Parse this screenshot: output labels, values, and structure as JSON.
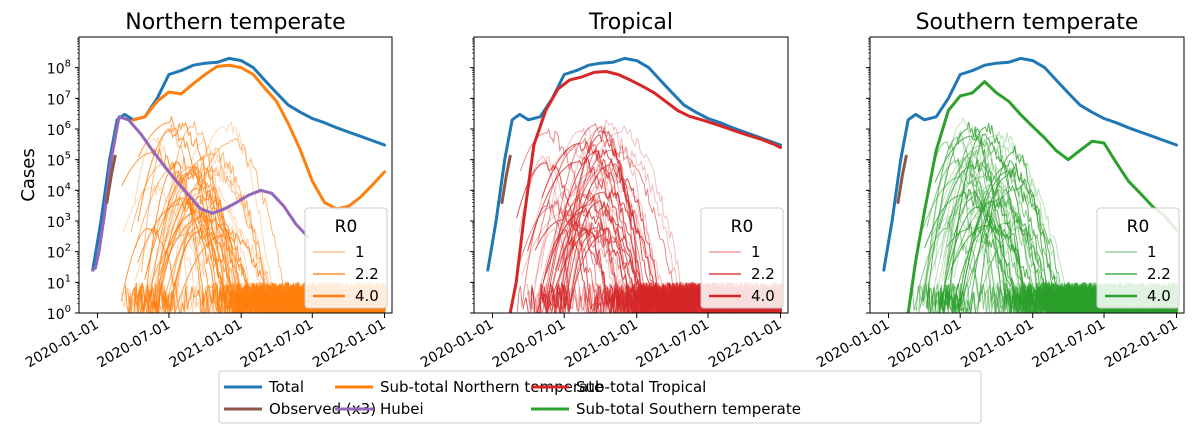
{
  "figure": {
    "legend": {
      "placement": "bottom-center",
      "columns": 3,
      "entries": [
        {
          "label": "Total",
          "color": "#1f77b4"
        },
        {
          "label": "Observed (x3)",
          "color": "#8c564b"
        },
        {
          "label": "Sub-total Northern temperate",
          "color": "#ff7f0e"
        },
        {
          "label": "Hubei",
          "color": "#9467bd"
        },
        {
          "label": "Sub-total Tropical",
          "color": "#d62728"
        },
        {
          "label": "Sub-total Southern temperate",
          "color": "#2ca02c"
        }
      ]
    }
  },
  "chart_data": [
    {
      "type": "line",
      "title": "Northern temperate",
      "xlabel": "",
      "ylabel": "Cases",
      "yscale": "log",
      "ylim": [
        1,
        1000000000
      ],
      "xlim": [
        "2019-11-15",
        "2022-01-20"
      ],
      "xticks": [
        "2020-01-01",
        "2020-07-01",
        "2021-01-01",
        "2021-07-01",
        "2022-01-01"
      ],
      "yticks": [
        "10^0",
        "10^1",
        "10^2",
        "10^3",
        "10^4",
        "10^5",
        "10^6",
        "10^7",
        "10^8"
      ],
      "legend": {
        "title": "R0",
        "placement": "lower-right",
        "entries": [
          {
            "label": "1",
            "color": "#ff7f0e",
            "opacity": 0.35
          },
          {
            "label": "2.2",
            "color": "#ff7f0e",
            "opacity": 0.65
          },
          {
            "label": "4.0",
            "color": "#ff7f0e",
            "opacity": 1.0
          }
        ]
      },
      "subtotal_color": "#ff7f0e",
      "series": [
        {
          "name": "Total",
          "color": "#1f77b4",
          "x": [
            "2019-12-20",
            "2020-01-10",
            "2020-02-01",
            "2020-02-20",
            "2020-03-10",
            "2020-04-01",
            "2020-05-01",
            "2020-06-01",
            "2020-07-01",
            "2020-08-01",
            "2020-09-01",
            "2020-10-01",
            "2020-11-01",
            "2020-12-01",
            "2021-01-01",
            "2021-02-01",
            "2021-03-01",
            "2021-04-01",
            "2021-05-01",
            "2021-06-01",
            "2021-07-01",
            "2021-08-01",
            "2021-09-01",
            "2021-10-01",
            "2021-11-01",
            "2021-12-01",
            "2022-01-01"
          ],
          "y": [
            25,
            1000,
            100000,
            2000000,
            3000000,
            2000000,
            2500000,
            10000000,
            60000000,
            80000000,
            120000000,
            140000000,
            150000000,
            200000000,
            170000000,
            100000000,
            40000000,
            15000000,
            6000000,
            3500000,
            2200000,
            1600000,
            1100000,
            800000,
            580000,
            420000,
            300000
          ]
        },
        {
          "name": "Sub-total Northern temperate",
          "color": "#ff7f0e",
          "x": [
            "2020-04-01",
            "2020-05-01",
            "2020-06-01",
            "2020-07-01",
            "2020-08-01",
            "2020-09-01",
            "2020-10-01",
            "2020-11-01",
            "2020-12-01",
            "2021-01-01",
            "2021-02-01",
            "2021-03-01",
            "2021-04-01",
            "2021-05-01",
            "2021-06-01",
            "2021-07-01",
            "2021-08-01",
            "2021-09-01",
            "2021-10-01",
            "2021-11-01",
            "2021-12-01",
            "2022-01-01"
          ],
          "y": [
            2000000,
            2500000,
            8000000,
            16000000,
            14000000,
            30000000,
            60000000,
            110000000,
            120000000,
            100000000,
            60000000,
            22000000,
            8000000,
            1500000,
            200000,
            20000,
            4000,
            2500,
            3000,
            6000,
            15000,
            40000
          ]
        },
        {
          "name": "Hubei",
          "color": "#9467bd",
          "x": [
            "2019-12-20",
            "2019-12-27",
            "2020-01-05",
            "2020-01-20",
            "2020-02-05",
            "2020-02-25",
            "2020-03-20",
            "2020-04-20",
            "2020-05-20",
            "2020-06-20",
            "2020-07-20",
            "2020-08-20",
            "2020-09-20",
            "2020-10-20",
            "2020-11-20",
            "2020-12-20",
            "2021-01-20",
            "2021-02-20",
            "2021-03-20",
            "2021-04-20",
            "2021-05-20",
            "2021-06-20"
          ],
          "y": [
            25,
            30,
            100,
            2000,
            100000,
            2500000,
            2000000,
            700000,
            200000,
            60000,
            20000,
            7000,
            2500,
            1800,
            2500,
            4000,
            7000,
            10000,
            8000,
            3000,
            800,
            300
          ]
        },
        {
          "name": "Observed (x3)",
          "color": "#8c564b",
          "x": [
            "2020-01-25",
            "2020-02-05",
            "2020-02-15"
          ],
          "y": [
            4000,
            30000,
            130000
          ]
        }
      ],
      "regional_curves_note": "many thin per-region curves peaking between 1e3 and 3e6, grouped by R0 (1, 2.2, 4.0)"
    },
    {
      "type": "line",
      "title": "Tropical",
      "xlabel": "",
      "ylabel": "",
      "yscale": "log",
      "ylim": [
        1,
        1000000000
      ],
      "xlim": [
        "2019-11-15",
        "2022-01-20"
      ],
      "xticks": [
        "2020-01-01",
        "2020-07-01",
        "2021-01-01",
        "2021-07-01",
        "2022-01-01"
      ],
      "legend": {
        "title": "R0",
        "placement": "lower-right",
        "entries": [
          {
            "label": "1",
            "color": "#d62728",
            "opacity": 0.35
          },
          {
            "label": "2.2",
            "color": "#d62728",
            "opacity": 0.65
          },
          {
            "label": "4.0",
            "color": "#d62728",
            "opacity": 1.0
          }
        ]
      },
      "subtotal_color": "#d62728",
      "series": [
        {
          "name": "Total",
          "color": "#1f77b4",
          "x": [
            "2019-12-20",
            "2020-01-10",
            "2020-02-01",
            "2020-02-20",
            "2020-03-10",
            "2020-04-01",
            "2020-05-01",
            "2020-06-01",
            "2020-07-01",
            "2020-08-01",
            "2020-09-01",
            "2020-10-01",
            "2020-11-01",
            "2020-12-01",
            "2021-01-01",
            "2021-02-01",
            "2021-03-01",
            "2021-04-01",
            "2021-05-01",
            "2021-06-01",
            "2021-07-01",
            "2021-08-01",
            "2021-09-01",
            "2021-10-01",
            "2021-11-01",
            "2021-12-01",
            "2022-01-01"
          ],
          "y": [
            25,
            1000,
            100000,
            2000000,
            3000000,
            2000000,
            2500000,
            10000000,
            60000000,
            80000000,
            120000000,
            140000000,
            150000000,
            200000000,
            170000000,
            100000000,
            40000000,
            15000000,
            6000000,
            3500000,
            2200000,
            1600000,
            1100000,
            800000,
            580000,
            420000,
            300000
          ]
        },
        {
          "name": "Sub-total Tropical",
          "color": "#d62728",
          "x": [
            "2020-02-15",
            "2020-03-01",
            "2020-03-20",
            "2020-04-15",
            "2020-05-15",
            "2020-06-15",
            "2020-07-15",
            "2020-08-15",
            "2020-09-15",
            "2020-10-15",
            "2020-11-15",
            "2020-12-15",
            "2021-01-15",
            "2021-02-15",
            "2021-03-15",
            "2021-04-15",
            "2021-05-15",
            "2021-06-15",
            "2021-07-15",
            "2021-08-15",
            "2021-09-15",
            "2021-10-15",
            "2021-11-15",
            "2021-12-15",
            "2022-01-01"
          ],
          "y": [
            1,
            10,
            1000,
            300000,
            4000000,
            20000000,
            40000000,
            50000000,
            70000000,
            75000000,
            60000000,
            40000000,
            25000000,
            15000000,
            8000000,
            4000000,
            2600000,
            2000000,
            1500000,
            1100000,
            800000,
            600000,
            450000,
            320000,
            250000
          ]
        },
        {
          "name": "Observed (x3)",
          "color": "#8c564b",
          "x": [
            "2020-01-25",
            "2020-02-05",
            "2020-02-15"
          ],
          "y": [
            4000,
            30000,
            130000
          ]
        }
      ],
      "regional_curves_note": "many thin per-region curves peaking between 1e4 and 5e6, grouped by R0 (1, 2.2, 4.0)"
    },
    {
      "type": "line",
      "title": "Southern temperate",
      "xlabel": "",
      "ylabel": "",
      "yscale": "log",
      "ylim": [
        1,
        1000000000
      ],
      "xlim": [
        "2019-11-15",
        "2022-01-20"
      ],
      "xticks": [
        "2020-01-01",
        "2020-07-01",
        "2021-01-01",
        "2021-07-01",
        "2022-01-01"
      ],
      "legend": {
        "title": "R0",
        "placement": "lower-right",
        "entries": [
          {
            "label": "1",
            "color": "#2ca02c",
            "opacity": 0.35
          },
          {
            "label": "2.2",
            "color": "#2ca02c",
            "opacity": 0.65
          },
          {
            "label": "4.0",
            "color": "#2ca02c",
            "opacity": 1.0
          }
        ]
      },
      "subtotal_color": "#2ca02c",
      "series": [
        {
          "name": "Total",
          "color": "#1f77b4",
          "x": [
            "2019-12-20",
            "2020-01-10",
            "2020-02-01",
            "2020-02-20",
            "2020-03-10",
            "2020-04-01",
            "2020-05-01",
            "2020-06-01",
            "2020-07-01",
            "2020-08-01",
            "2020-09-01",
            "2020-10-01",
            "2020-11-01",
            "2020-12-01",
            "2021-01-01",
            "2021-02-01",
            "2021-03-01",
            "2021-04-01",
            "2021-05-01",
            "2021-06-01",
            "2021-07-01",
            "2021-08-01",
            "2021-09-01",
            "2021-10-01",
            "2021-11-01",
            "2021-12-01",
            "2022-01-01"
          ],
          "y": [
            25,
            1000,
            100000,
            2000000,
            3000000,
            2000000,
            2500000,
            10000000,
            60000000,
            80000000,
            120000000,
            140000000,
            150000000,
            200000000,
            170000000,
            100000000,
            40000000,
            15000000,
            6000000,
            3500000,
            2200000,
            1600000,
            1100000,
            800000,
            580000,
            420000,
            300000
          ]
        },
        {
          "name": "Sub-total Southern temperate",
          "color": "#2ca02c",
          "x": [
            "2020-02-20",
            "2020-03-10",
            "2020-04-01",
            "2020-05-01",
            "2020-06-01",
            "2020-07-01",
            "2020-08-01",
            "2020-09-01",
            "2020-10-01",
            "2020-11-01",
            "2020-12-01",
            "2021-01-01",
            "2021-02-01",
            "2021-03-01",
            "2021-04-01",
            "2021-05-01",
            "2021-06-01",
            "2021-07-01",
            "2021-08-01",
            "2021-09-01",
            "2021-10-01",
            "2021-11-01",
            "2021-12-01",
            "2022-01-01"
          ],
          "y": [
            1,
            50,
            2000,
            200000,
            4000000,
            12000000,
            15000000,
            35000000,
            15000000,
            8000000,
            3000000,
            1200000,
            500000,
            200000,
            100000,
            200000,
            400000,
            350000,
            80000,
            20000,
            8000,
            3000,
            1500,
            500
          ]
        },
        {
          "name": "Observed (x3)",
          "color": "#8c564b",
          "x": [
            "2020-01-25",
            "2020-02-05",
            "2020-02-15"
          ],
          "y": [
            4000,
            30000,
            130000
          ]
        }
      ],
      "regional_curves_note": "many thin per-region curves peaking between 1e4 and 2e6, grouped by R0 (1, 2.2, 4.0)"
    }
  ]
}
